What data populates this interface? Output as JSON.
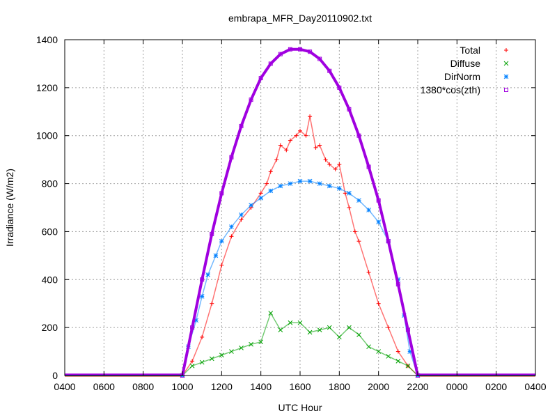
{
  "chart_data": {
    "type": "scatter",
    "title": "embrapa_MFR_Day20110902.txt",
    "xlabel": "UTC Hour",
    "ylabel": "Irradiance (W/m2)",
    "xlim": [
      4,
      28
    ],
    "ylim": [
      0,
      1400
    ],
    "x_ticks": [
      {
        "value": 4,
        "label": "0400"
      },
      {
        "value": 6,
        "label": "0600"
      },
      {
        "value": 8,
        "label": "0800"
      },
      {
        "value": 10,
        "label": "1000"
      },
      {
        "value": 12,
        "label": "1200"
      },
      {
        "value": 14,
        "label": "1400"
      },
      {
        "value": 16,
        "label": "1600"
      },
      {
        "value": 18,
        "label": "1800"
      },
      {
        "value": 20,
        "label": "2000"
      },
      {
        "value": 22,
        "label": "2200"
      },
      {
        "value": 24,
        "label": "0000"
      },
      {
        "value": 26,
        "label": "0200"
      },
      {
        "value": 28,
        "label": "0400"
      }
    ],
    "y_ticks": [
      0,
      200,
      400,
      600,
      800,
      1000,
      1200,
      1400
    ],
    "grid": true,
    "legend_position": "top-right",
    "series": [
      {
        "name": "Total",
        "color": "#ff0000",
        "marker": "plus",
        "x": [
          10.0,
          10.5,
          11.0,
          11.5,
          12.0,
          12.5,
          13.0,
          13.5,
          14.0,
          14.3,
          14.5,
          14.8,
          15.0,
          15.3,
          15.5,
          15.8,
          16.0,
          16.3,
          16.5,
          16.8,
          17.0,
          17.3,
          17.5,
          17.8,
          18.0,
          18.3,
          18.5,
          18.8,
          19.0,
          19.5,
          20.0,
          20.5,
          21.0,
          21.5,
          22.0
        ],
        "values": [
          0,
          60,
          160,
          300,
          460,
          580,
          650,
          700,
          760,
          800,
          850,
          900,
          960,
          940,
          980,
          1000,
          1020,
          1000,
          1080,
          950,
          960,
          900,
          880,
          860,
          880,
          760,
          700,
          600,
          560,
          430,
          300,
          200,
          100,
          40,
          0
        ]
      },
      {
        "name": "Diffuse",
        "color": "#00a000",
        "marker": "cross",
        "x": [
          10.0,
          10.5,
          11.0,
          11.5,
          12.0,
          12.5,
          13.0,
          13.5,
          14.0,
          14.5,
          15.0,
          15.5,
          16.0,
          16.5,
          17.0,
          17.5,
          18.0,
          18.5,
          19.0,
          19.5,
          20.0,
          20.5,
          21.0,
          21.5,
          22.0
        ],
        "values": [
          0,
          40,
          55,
          70,
          85,
          100,
          115,
          130,
          140,
          260,
          190,
          220,
          220,
          180,
          190,
          200,
          160,
          200,
          170,
          120,
          100,
          80,
          60,
          40,
          0
        ]
      },
      {
        "name": "DirNorm",
        "color": "#0080ff",
        "marker": "star",
        "x": [
          10.0,
          10.3,
          10.7,
          11.0,
          11.3,
          11.7,
          12.0,
          12.5,
          13.0,
          13.5,
          14.0,
          14.5,
          15.0,
          15.5,
          16.0,
          16.5,
          17.0,
          17.5,
          18.0,
          18.5,
          19.0,
          19.5,
          20.0,
          20.5,
          21.0,
          21.3,
          21.6,
          22.0
        ],
        "values": [
          0,
          120,
          230,
          330,
          420,
          500,
          560,
          620,
          670,
          710,
          740,
          770,
          790,
          800,
          810,
          810,
          800,
          790,
          780,
          760,
          730,
          690,
          640,
          560,
          400,
          250,
          100,
          0
        ]
      },
      {
        "name": "1380*cos(zth)",
        "color": "#a000e0",
        "marker": "square",
        "x": [
          10.0,
          10.5,
          11.0,
          11.5,
          12.0,
          12.5,
          13.0,
          13.5,
          14.0,
          14.5,
          15.0,
          15.5,
          16.0,
          16.5,
          17.0,
          17.5,
          18.0,
          18.5,
          19.0,
          19.5,
          20.0,
          20.5,
          21.0,
          21.5,
          22.0
        ],
        "values": [
          0,
          200,
          400,
          590,
          760,
          910,
          1040,
          1150,
          1240,
          1300,
          1340,
          1360,
          1360,
          1350,
          1320,
          1270,
          1200,
          1110,
          1000,
          870,
          730,
          560,
          380,
          190,
          0
        ]
      }
    ]
  }
}
